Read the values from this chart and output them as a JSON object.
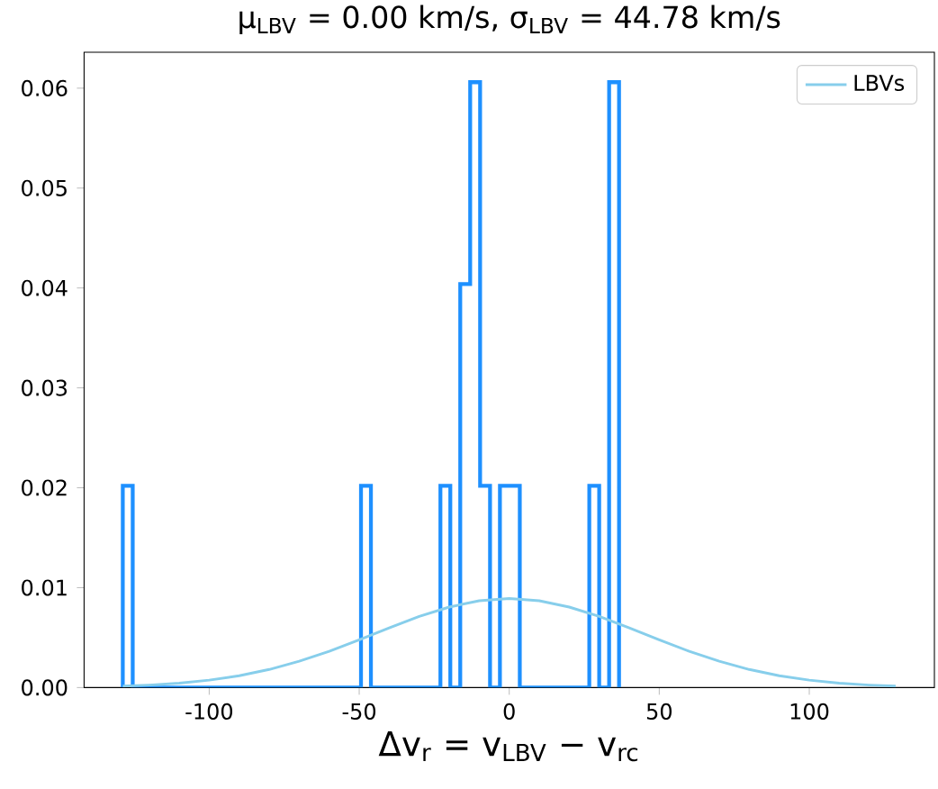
{
  "chart_data": {
    "type": "histogram",
    "title": "μ$_{LBV}$ = 0.00 km/s,  σ$_{LBV}$ = 44.78 km/s",
    "xlabel": "Δv$_{r}$ = v$_{LBV}$ − v$_{rc}$",
    "bins": [
      -128.8,
      -125.49,
      -122.18,
      -118.88,
      -115.57,
      -112.26,
      -108.95,
      -105.64,
      -102.34,
      -99.03,
      -95.72,
      -92.41,
      -89.1,
      -85.8,
      -82.49,
      -79.18,
      -75.87,
      -72.56,
      -69.26,
      -65.95,
      -62.64,
      -59.33,
      -56.02,
      -52.72,
      -49.41,
      -46.1,
      -42.79,
      -39.48,
      -36.18,
      -32.87,
      -29.56,
      -26.25,
      -22.94,
      -19.64,
      -16.33,
      -13.02,
      -9.71,
      -6.4,
      -3.1,
      0.21,
      3.52,
      6.83,
      10.14,
      13.44,
      16.75,
      20.06,
      23.37,
      26.68,
      29.98,
      33.29,
      36.6
    ],
    "values": [
      0.0202,
      0,
      0,
      0,
      0,
      0,
      0,
      0,
      0,
      0,
      0,
      0,
      0,
      0,
      0,
      0,
      0,
      0,
      0,
      0,
      0,
      0,
      0,
      0,
      0.0202,
      0,
      0,
      0,
      0,
      0,
      0,
      0,
      0.0202,
      0,
      0.0404,
      0.0606,
      0.0202,
      0,
      0.0202,
      0.0202,
      0,
      0,
      0,
      0,
      0,
      0,
      0,
      0.0202,
      0,
      0.0606
    ],
    "color": "#1e90ff",
    "series": [
      {
        "name": "LBVs",
        "type": "line",
        "color": "#87ceeb",
        "x": [
          -128.8,
          -120,
          -110,
          -100,
          -90,
          -80,
          -70,
          -60,
          -50,
          -40,
          -30,
          -20,
          -10,
          0,
          10,
          20,
          30,
          40,
          50,
          60,
          70,
          80,
          90,
          100,
          110,
          120,
          128.8
        ],
        "values": [
          0.00014,
          0.00025,
          0.00044,
          0.00074,
          0.00118,
          0.00181,
          0.00263,
          0.00363,
          0.00478,
          0.00598,
          0.00712,
          0.00806,
          0.00869,
          0.00891,
          0.00869,
          0.00806,
          0.00712,
          0.00598,
          0.00478,
          0.00363,
          0.00263,
          0.00181,
          0.00118,
          0.00074,
          0.00044,
          0.00025,
          0.00014
        ]
      }
    ],
    "xlim": [
      -141.7,
      141.7
    ],
    "ylim": [
      0,
      0.0636
    ],
    "xticks": [
      -100,
      -50,
      0,
      50,
      100
    ],
    "yticks": [
      {
        "value": 0,
        "label": "0.00"
      },
      {
        "value": 0.01,
        "label": "0.01"
      },
      {
        "value": 0.02,
        "label": "0.02"
      },
      {
        "value": 0.03,
        "label": "0.03"
      },
      {
        "value": 0.04,
        "label": "0.04"
      },
      {
        "value": 0.05,
        "label": "0.05"
      },
      {
        "value": 0.06,
        "label": "0.06"
      }
    ],
    "legend": "top right"
  }
}
